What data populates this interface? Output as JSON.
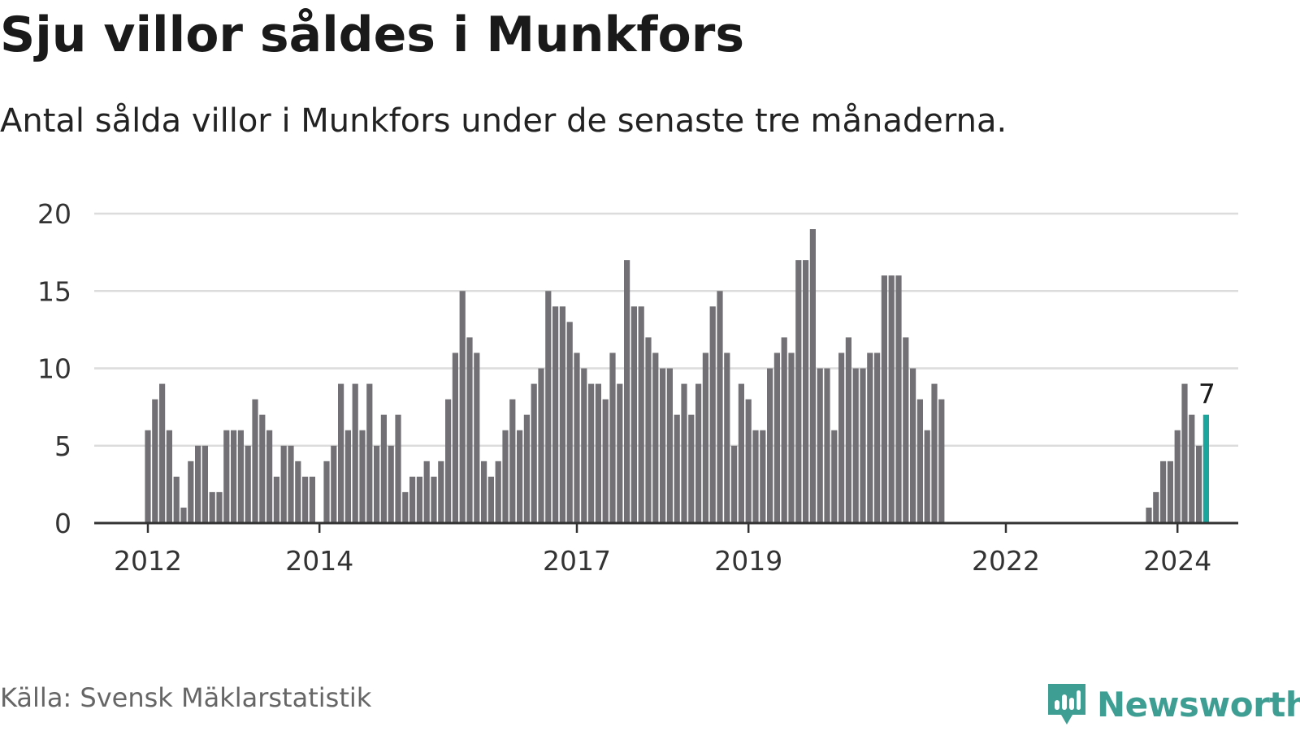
{
  "title": "Sju villor såldes i Munkfors",
  "subtitle": "Antal sålda villor i Munkfors under de senaste tre månaderna.",
  "source": "Källa: Svensk Mäklarstatistik",
  "brand": "Newsworthy",
  "brand_icon": "newsworthy-logo-icon",
  "colors": {
    "bar": "#727075",
    "highlight": "#1aa69c",
    "grid": "#dcdcdc",
    "axis": "#333333",
    "brand": "#3f9e93"
  },
  "chart_data": {
    "type": "bar",
    "title": "Sju villor såldes i Munkfors",
    "subtitle": "Antal sålda villor i Munkfors under de senaste tre månaderna.",
    "xlabel": "",
    "ylabel": "",
    "ylim": [
      0,
      20
    ],
    "yticks": [
      0,
      5,
      10,
      15,
      20
    ],
    "grid": true,
    "x_start": "2012-01",
    "x_end": "2024-02",
    "x_ticks": [
      "2012",
      "2014",
      "2017",
      "2019",
      "2022",
      "2024"
    ],
    "x_tick_positions_in_months_from_start": [
      0,
      24,
      60,
      84,
      120,
      144
    ],
    "series": [
      {
        "name": "Sålda villor",
        "values": [
          6,
          8,
          9,
          6,
          3,
          1,
          4,
          5,
          5,
          2,
          2,
          6,
          6,
          6,
          5,
          8,
          7,
          6,
          3,
          5,
          5,
          4,
          3,
          3,
          null,
          4,
          5,
          9,
          6,
          9,
          6,
          9,
          5,
          7,
          5,
          7,
          2,
          3,
          3,
          4,
          3,
          4,
          8,
          11,
          15,
          12,
          11,
          4,
          3,
          4,
          6,
          8,
          6,
          7,
          9,
          10,
          15,
          14,
          14,
          13,
          11,
          10,
          9,
          9,
          8,
          11,
          9,
          17,
          14,
          14,
          12,
          11,
          10,
          10,
          7,
          9,
          7,
          9,
          11,
          14,
          15,
          11,
          5,
          9,
          8,
          6,
          6,
          10,
          11,
          12,
          11,
          17,
          17,
          19,
          10,
          10,
          6,
          11,
          12,
          10,
          10,
          11,
          11,
          16,
          16,
          16,
          12,
          10,
          8,
          6,
          9,
          8,
          null,
          null,
          null,
          null,
          null,
          null,
          null,
          null,
          null,
          null,
          null,
          null,
          null,
          null,
          null,
          null,
          null,
          null,
          null,
          null,
          null,
          null,
          null,
          null,
          null,
          null,
          null,
          null,
          1,
          2,
          4,
          4,
          6,
          9,
          7,
          5,
          7
        ]
      }
    ],
    "highlight": {
      "label": "7",
      "value": 7,
      "month": "2024-02"
    }
  }
}
